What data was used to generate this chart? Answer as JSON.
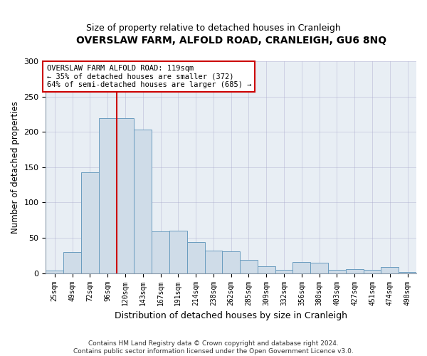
{
  "title": "OVERSLAW FARM, ALFOLD ROAD, CRANLEIGH, GU6 8NQ",
  "subtitle": "Size of property relative to detached houses in Cranleigh",
  "xlabel": "Distribution of detached houses by size in Cranleigh",
  "ylabel": "Number of detached properties",
  "bar_values": [
    4,
    30,
    143,
    219,
    219,
    203,
    59,
    60,
    44,
    32,
    31,
    19,
    10,
    5,
    16,
    15,
    5,
    6,
    5,
    9,
    2
  ],
  "bar_labels": [
    "25sqm",
    "49sqm",
    "72sqm",
    "96sqm",
    "120sqm",
    "143sqm",
    "167sqm",
    "191sqm",
    "214sqm",
    "238sqm",
    "262sqm",
    "285sqm",
    "309sqm",
    "332sqm",
    "356sqm",
    "380sqm",
    "403sqm",
    "427sqm",
    "451sqm",
    "474sqm",
    "498sqm"
  ],
  "bar_color": "#cfdce8",
  "bar_edge_color": "#6a9cbf",
  "vline_color": "#cc0000",
  "annotation_line1": "OVERSLAW FARM ALFOLD ROAD: 119sqm",
  "annotation_line2": "← 35% of detached houses are smaller (372)",
  "annotation_line3": "64% of semi-detached houses are larger (685) →",
  "annotation_box_color": "#ffffff",
  "annotation_box_edge": "#cc0000",
  "ylim": [
    0,
    300
  ],
  "yticks": [
    0,
    50,
    100,
    150,
    200,
    250,
    300
  ],
  "footer_line1": "Contains HM Land Registry data © Crown copyright and database right 2024.",
  "footer_line2": "Contains public sector information licensed under the Open Government Licence v3.0.",
  "bg_color": "#ffffff",
  "plot_bg_color": "#e8eef4"
}
